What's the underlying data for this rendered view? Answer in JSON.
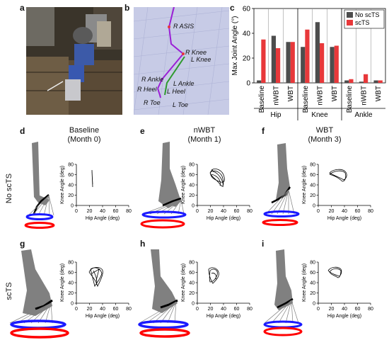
{
  "panels": {
    "a": "a",
    "b": "b",
    "c": "c",
    "d": "d",
    "e": "e",
    "f": "f",
    "g": "g",
    "h": "h",
    "i": "i"
  },
  "columns": {
    "baseline": {
      "title": "Baseline",
      "sub": "(Month 0)"
    },
    "nwbt": {
      "title": "nWBT",
      "sub": "(Month 1)"
    },
    "wbt": {
      "title": "WBT",
      "sub": "(Month 3)"
    }
  },
  "rows": {
    "no_scts": "No scTS",
    "scts": "scTS"
  },
  "markers": {
    "r_asis": "R ASIS",
    "r_knee": "R Knee",
    "l_knee": "L Knee",
    "r_ankle": "R Ankle",
    "l_ankle": "L Ankle",
    "r_heel": "R Heel",
    "l_heel": "L Heel",
    "r_toe": "R Toe",
    "l_toe": "L Toe"
  },
  "loop_axes": {
    "xlabel": "Hip Angle (deg)",
    "ylabel": "Knee Angle (deg)",
    "xticks": [
      "0",
      "20",
      "40",
      "60",
      "80"
    ],
    "yticks": [
      "0",
      "20",
      "40",
      "60",
      "80"
    ]
  },
  "colors": {
    "no_scts": "#4d4d4d",
    "scts": "#e8383a",
    "thigh": "#808080",
    "foot_blue": "#1a1aff",
    "foot_red": "#ff0000",
    "marker_bg": "#c7cbe6",
    "marker_purple": "#9b1fd6",
    "marker_green": "#2e9a2e"
  },
  "chart_data": {
    "type": "bar",
    "ylabel": "Max Joint Angle (°)",
    "ylim": [
      0,
      60
    ],
    "yticks": [
      0,
      20,
      40,
      60
    ],
    "groups": [
      "Hip",
      "Knee",
      "Ankle"
    ],
    "categories": [
      "Baseline",
      "nWBT",
      "WBT"
    ],
    "legend": "top-right",
    "series": [
      {
        "name": "No scTS",
        "values": [
          [
            2,
            38,
            33
          ],
          [
            29,
            49,
            29
          ],
          [
            2,
            1,
            2
          ]
        ]
      },
      {
        "name": "scTS",
        "values": [
          [
            35,
            28,
            33
          ],
          [
            43,
            32,
            30
          ],
          [
            3,
            7,
            2
          ]
        ]
      }
    ]
  }
}
